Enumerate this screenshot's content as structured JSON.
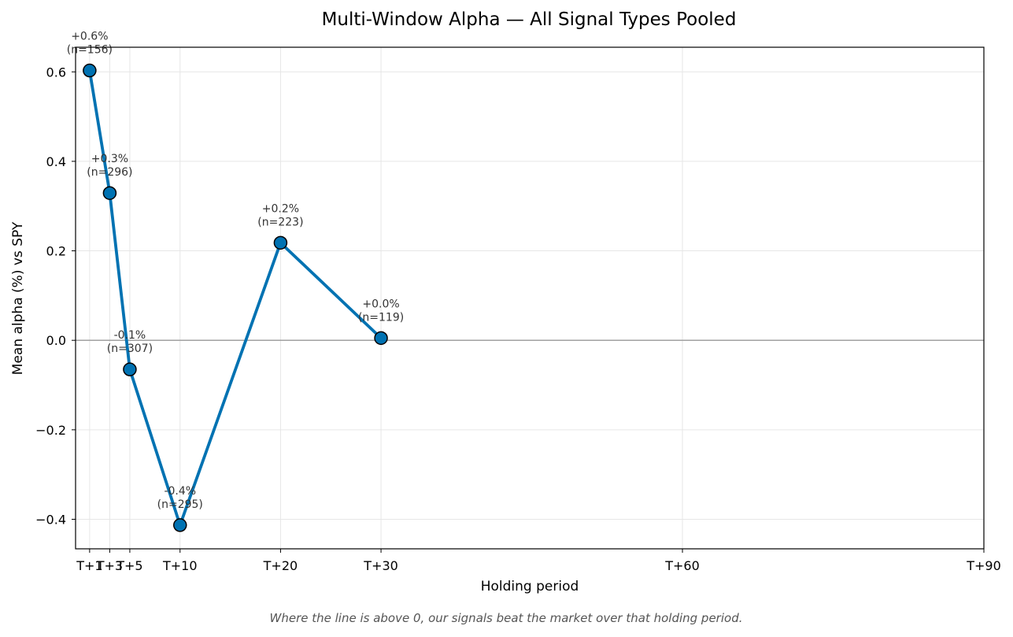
{
  "chart_data": {
    "type": "line",
    "title": "Multi-Window Alpha — All Signal Types Pooled",
    "xlabel": "Holding period",
    "ylabel": "Mean alpha (%) vs SPY",
    "caption": "Where the line is above 0, our signals beat the market over that holding period.",
    "x": [
      1,
      3,
      5,
      10,
      20,
      30
    ],
    "y": [
      0.603,
      0.329,
      -0.065,
      -0.413,
      0.218,
      0.005
    ],
    "point_labels": [
      "+0.6%",
      "+0.3%",
      "-0.1%",
      "-0.4%",
      "+0.2%",
      "+0.0%"
    ],
    "point_counts": [
      "(n=156)",
      "(n=296)",
      "(n=307)",
      "(n=295)",
      "(n=223)",
      "(n=119)"
    ],
    "x_ticks": [
      1,
      3,
      5,
      10,
      20,
      30,
      60,
      90
    ],
    "x_tick_labels": [
      "T+1",
      "T+3",
      "T+5",
      "T+10",
      "T+20",
      "T+30",
      "T+60",
      "T+90"
    ],
    "y_ticks": [
      -0.4,
      -0.2,
      0.0,
      0.2,
      0.4,
      0.6
    ],
    "y_tick_labels": [
      "−0.4",
      "−0.2",
      "0.0",
      "0.2",
      "0.4",
      "0.6"
    ],
    "xlim": [
      -0.4,
      90
    ],
    "ylim": [
      -0.466,
      0.655
    ],
    "grid": true,
    "zero_line": true,
    "colors": {
      "line": "#0072b2",
      "marker_edge": "#000000",
      "grid": "#e6e6e6",
      "zero_line": "#999999",
      "axis": "#000000"
    }
  }
}
